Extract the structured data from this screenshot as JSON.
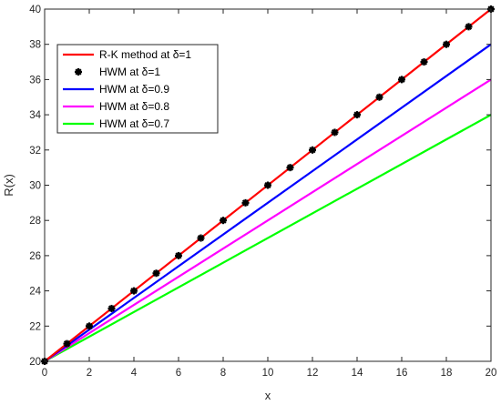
{
  "chart_data": {
    "type": "line",
    "xlabel": "x",
    "ylabel": "R(x)",
    "xlim": [
      0,
      20
    ],
    "ylim": [
      20,
      40
    ],
    "xticks": [
      0,
      2,
      4,
      6,
      8,
      10,
      12,
      14,
      16,
      18,
      20
    ],
    "yticks": [
      20,
      22,
      24,
      26,
      28,
      30,
      32,
      34,
      36,
      38,
      40
    ],
    "grid": false,
    "legend_position": "top-left",
    "series": [
      {
        "name": "R-K method at δ=1",
        "style": "line",
        "color": "#ff0000",
        "x": [
          0,
          20
        ],
        "y": [
          20,
          40
        ]
      },
      {
        "name": "HWM at δ=1",
        "style": "markers",
        "marker": "asterisk",
        "color": "#000000",
        "x": [
          0,
          1,
          2,
          3,
          4,
          5,
          6,
          7,
          8,
          9,
          10,
          11,
          12,
          13,
          14,
          15,
          16,
          17,
          18,
          19,
          20
        ],
        "y": [
          20,
          21,
          22,
          23,
          24,
          25,
          26,
          27,
          28,
          29,
          30,
          31,
          32,
          33,
          34,
          35,
          36,
          37,
          38,
          39,
          40
        ]
      },
      {
        "name": "HWM at δ=0.9",
        "style": "line",
        "color": "#0000ff",
        "x": [
          0,
          20
        ],
        "y": [
          20,
          38
        ]
      },
      {
        "name": "HWM at δ=0.8",
        "style": "line",
        "color": "#ff00ff",
        "x": [
          0,
          20
        ],
        "y": [
          20,
          36
        ]
      },
      {
        "name": "HWM at δ=0.7",
        "style": "line",
        "color": "#00ff00",
        "x": [
          0,
          20
        ],
        "y": [
          20,
          34
        ]
      }
    ]
  }
}
